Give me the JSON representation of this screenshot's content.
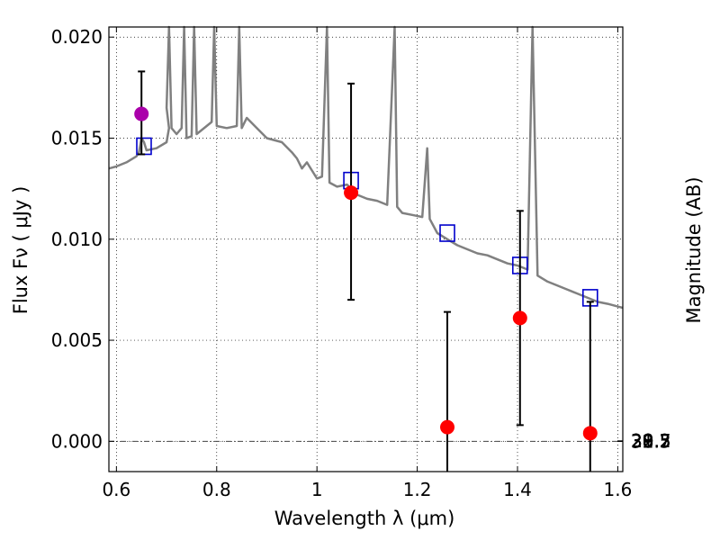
{
  "chart_data": {
    "type": "scatter",
    "title": "",
    "xlabel": "Wavelength  λ (μm)",
    "ylabel": "Flux  Fν  ( μJy )",
    "y2label": "Magnitude (AB)",
    "xlim": [
      0.585,
      1.61
    ],
    "ylim": [
      -0.0015,
      0.0205
    ],
    "grid": true,
    "x_ticks": [
      0.6,
      0.8,
      1.0,
      1.2,
      1.4,
      1.6
    ],
    "x_tick_labels": [
      "0.6",
      "0.8",
      "1",
      "1.2",
      "1.4",
      "1.6"
    ],
    "y_ticks": [
      0.0,
      0.005,
      0.01,
      0.015,
      0.02
    ],
    "y_tick_labels": [
      "0.000",
      "0.005",
      "0.010",
      "0.015",
      "0.020"
    ],
    "y2_ticks": [
      "28.2",
      "28.3",
      "28.5",
      "28.7",
      "29",
      "29.2",
      "29.5",
      "30",
      "30.5",
      "31",
      "32"
    ],
    "zero_line": 0.0,
    "colors": {
      "spectrum": "#808080",
      "observed": "#ff0000",
      "highlight": "#aa00aa",
      "model": "#0000cc",
      "errorbar": "#000000"
    },
    "series": [
      {
        "kind": "line",
        "points": [
          [
            0.585,
            0.0135
          ],
          [
            0.6,
            0.0136
          ],
          [
            0.62,
            0.0138
          ],
          [
            0.64,
            0.0141
          ],
          [
            0.645,
            0.0143
          ],
          [
            0.65,
            0.015
          ],
          [
            0.655,
            0.0148
          ],
          [
            0.66,
            0.0144
          ],
          [
            0.68,
            0.0145
          ],
          [
            0.7,
            0.0148
          ],
          [
            0.705,
            0.0155
          ],
          [
            0.7,
            0.0165
          ],
          [
            0.705,
            0.0205
          ],
          [
            0.71,
            0.0155
          ],
          [
            0.72,
            0.0152
          ],
          [
            0.73,
            0.0155
          ],
          [
            0.735,
            0.0205
          ],
          [
            0.74,
            0.015
          ],
          [
            0.75,
            0.0151
          ],
          [
            0.755,
            0.0205
          ],
          [
            0.76,
            0.0152
          ],
          [
            0.77,
            0.0154
          ],
          [
            0.79,
            0.0158
          ],
          [
            0.795,
            0.0205
          ],
          [
            0.8,
            0.0156
          ],
          [
            0.82,
            0.0155
          ],
          [
            0.84,
            0.0156
          ],
          [
            0.845,
            0.0205
          ],
          [
            0.85,
            0.0155
          ],
          [
            0.86,
            0.016
          ],
          [
            0.88,
            0.0155
          ],
          [
            0.9,
            0.015
          ],
          [
            0.93,
            0.0148
          ],
          [
            0.95,
            0.0143
          ],
          [
            0.96,
            0.014
          ],
          [
            0.97,
            0.0135
          ],
          [
            0.98,
            0.0138
          ],
          [
            0.99,
            0.0134
          ],
          [
            1.0,
            0.013
          ],
          [
            1.01,
            0.0131
          ],
          [
            1.02,
            0.0205
          ],
          [
            1.025,
            0.0128
          ],
          [
            1.04,
            0.0126
          ],
          [
            1.06,
            0.0127
          ],
          [
            1.08,
            0.0122
          ],
          [
            1.1,
            0.012
          ],
          [
            1.12,
            0.0119
          ],
          [
            1.14,
            0.0117
          ],
          [
            1.155,
            0.0205
          ],
          [
            1.16,
            0.0116
          ],
          [
            1.17,
            0.0113
          ],
          [
            1.19,
            0.0112
          ],
          [
            1.21,
            0.0111
          ],
          [
            1.22,
            0.0145
          ],
          [
            1.225,
            0.011
          ],
          [
            1.24,
            0.0103
          ],
          [
            1.26,
            0.01
          ],
          [
            1.28,
            0.0097
          ],
          [
            1.3,
            0.0095
          ],
          [
            1.32,
            0.0093
          ],
          [
            1.34,
            0.0092
          ],
          [
            1.36,
            0.009
          ],
          [
            1.38,
            0.0088
          ],
          [
            1.4,
            0.0087
          ],
          [
            1.42,
            0.0085
          ],
          [
            1.43,
            0.0205
          ],
          [
            1.44,
            0.0082
          ],
          [
            1.46,
            0.0079
          ],
          [
            1.48,
            0.0077
          ],
          [
            1.5,
            0.0075
          ],
          [
            1.52,
            0.0073
          ],
          [
            1.54,
            0.0071
          ],
          [
            1.56,
            0.0069
          ],
          [
            1.58,
            0.0068
          ],
          [
            1.61,
            0.0066
          ]
        ]
      },
      {
        "kind": "observed",
        "points": [
          {
            "x": 0.65,
            "y": 0.0162,
            "yerr_low": 0.0142,
            "yerr_high": 0.0183,
            "color": "#aa00aa"
          },
          {
            "x": 1.068,
            "y": 0.0123,
            "yerr_low": 0.007,
            "yerr_high": 0.0177,
            "color": "#ff0000"
          },
          {
            "x": 1.26,
            "y": 0.0007,
            "yerr_low": -0.0015,
            "yerr_high": 0.0064,
            "color": "#ff0000"
          },
          {
            "x": 1.405,
            "y": 0.0061,
            "yerr_low": 0.0008,
            "yerr_high": 0.0114,
            "color": "#ff0000"
          },
          {
            "x": 1.545,
            "y": 0.0004,
            "yerr_low": -0.0015,
            "yerr_high": 0.0069,
            "color": "#ff0000"
          }
        ]
      },
      {
        "kind": "model",
        "points": [
          {
            "x": 0.655,
            "y": 0.0146
          },
          {
            "x": 1.068,
            "y": 0.0129
          },
          {
            "x": 1.26,
            "y": 0.0103
          },
          {
            "x": 1.405,
            "y": 0.0087
          },
          {
            "x": 1.545,
            "y": 0.0071
          }
        ]
      }
    ]
  }
}
